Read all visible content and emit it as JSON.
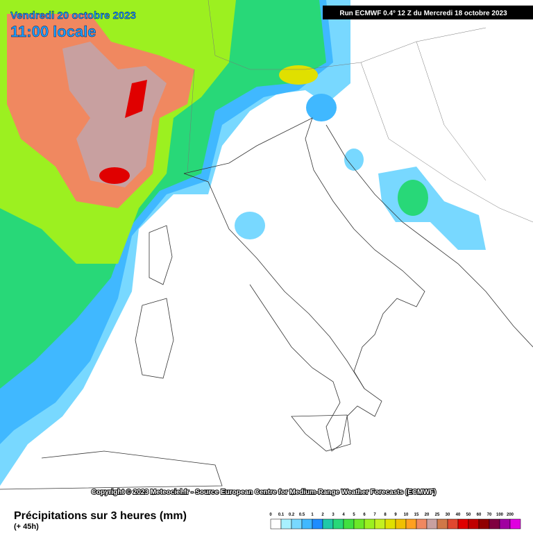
{
  "header": {
    "date": "Vendredi 20 octobre 2023",
    "time": "11:00 locale",
    "run": "Run ECMWF 0.4° 12 Z du Mercredi 18 octobre 2023"
  },
  "copyright": "Copyright © 2023 Meteociel.fr - Source European Centre for Medium-Range Weather Forecasts (ECMWF)",
  "footer": {
    "title": "Précipitations sur 3 heures (mm)",
    "lead": "(+ 45h)"
  },
  "legend": {
    "labels": [
      "0",
      "0.1",
      "0.2",
      "0.5",
      "1",
      "2",
      "3",
      "4",
      "5",
      "6",
      "7",
      "8",
      "9",
      "10",
      "15",
      "20",
      "25",
      "30",
      "40",
      "50",
      "60",
      "70",
      "100",
      "200"
    ],
    "colors": [
      "#ffffff",
      "#a8f0ff",
      "#78d8ff",
      "#40b8ff",
      "#1e8cff",
      "#20c8a8",
      "#28d878",
      "#40e040",
      "#6ce828",
      "#9cf020",
      "#c4f020",
      "#e0e000",
      "#f0c000",
      "#ffa020",
      "#f08860",
      "#c8a0a0",
      "#d07848",
      "#e04830",
      "#e00000",
      "#c00000",
      "#900000",
      "#800040",
      "#a000a0",
      "#e000e0"
    ]
  }
}
